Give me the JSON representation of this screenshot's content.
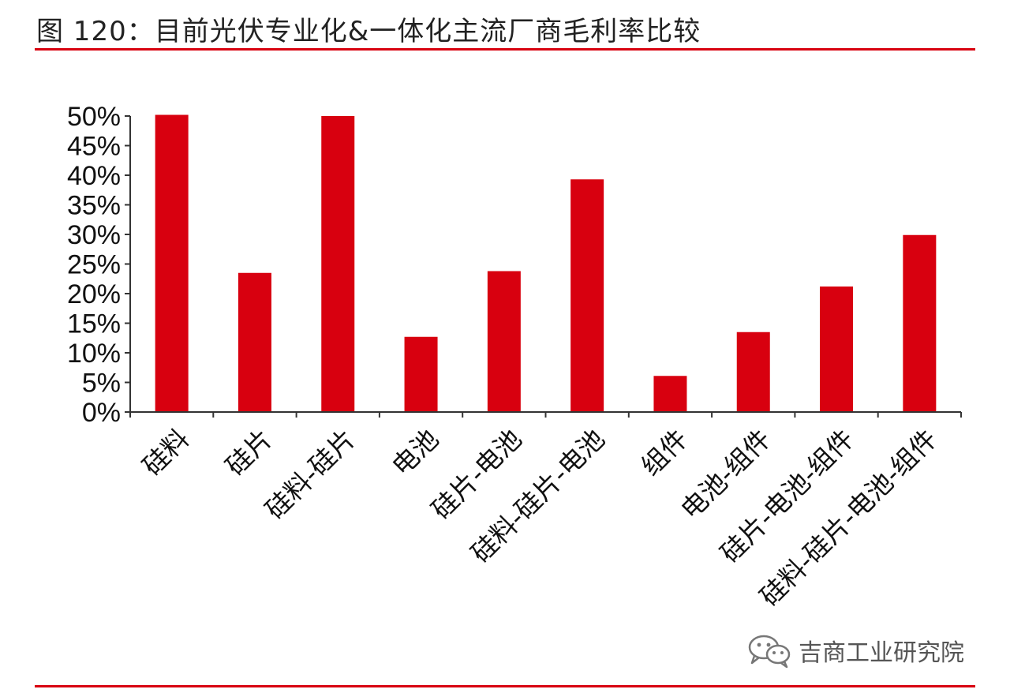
{
  "title": "图 120：目前光伏专业化&一体化主流厂商毛利率比较",
  "colors": {
    "accent": "#d8000f",
    "bar": "#d8000f",
    "axis": "#333333",
    "text": "#111111"
  },
  "watermark": {
    "icon": "wechat-icon",
    "text": "吉商工业研究院"
  },
  "chart_data": {
    "type": "bar",
    "categories": [
      "硅料",
      "硅片",
      "硅料-硅片",
      "电池",
      "硅片-电池",
      "硅料-硅片-电池",
      "组件",
      "电池-组件",
      "硅片-电池-组件",
      "硅料-硅片-电池-组件"
    ],
    "values": [
      50.2,
      23.5,
      50.0,
      12.7,
      23.8,
      39.3,
      6.1,
      13.5,
      21.2,
      29.9
    ],
    "ylim": [
      0,
      50
    ],
    "ytick_values": [
      0,
      5,
      10,
      15,
      20,
      25,
      30,
      35,
      40,
      45,
      50
    ],
    "ytick_labels": [
      "0%",
      "5%",
      "10%",
      "15%",
      "20%",
      "25%",
      "30%",
      "35%",
      "40%",
      "45%",
      "50%"
    ],
    "xlabel": "",
    "ylabel": "",
    "grid": false,
    "legend": "none"
  }
}
